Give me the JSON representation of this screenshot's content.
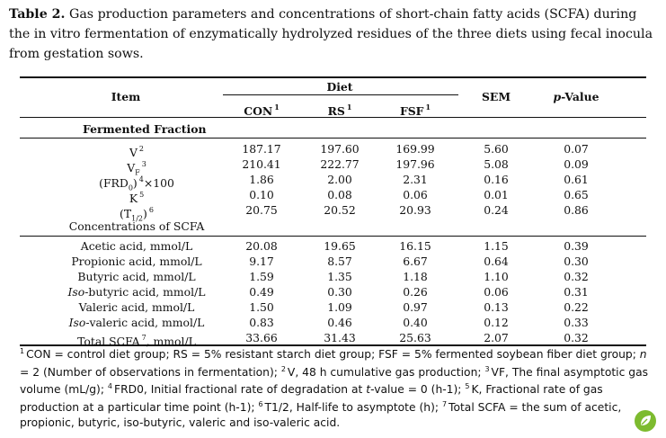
{
  "caption": {
    "label": "Table 2.",
    "text": "Gas production parameters and concentrations of short-chain fatty acids (SCFA) during the in vitro fermentation of enzymatically hydrolyzed residues of the three diets using fecal inocula from gestation sows."
  },
  "header": {
    "item": "Item",
    "diet": "Diet",
    "con": "CON",
    "con_sup": "1",
    "rs": "RS",
    "rs_sup": "1",
    "fsf": "FSF",
    "fsf_sup": "1",
    "sem": "SEM",
    "pvalue": "p-Value"
  },
  "section1": "Fermented Fraction",
  "section2": "Concentrations of SCFA",
  "gas_rows": [
    {
      "label": "V",
      "sup": "2",
      "con": "187.17",
      "rs": "197.60",
      "fsf": "169.99",
      "sem": "5.60",
      "p": "0.07"
    },
    {
      "label": "V",
      "sub": "F",
      "sup": "3",
      "con": "210.41",
      "rs": "222.77",
      "fsf": "197.96",
      "sem": "5.08",
      "p": "0.09"
    },
    {
      "label": "(FRD",
      "sub": "0",
      "after": ")",
      "sup": "4",
      "tail": "×100",
      "con": "1.86",
      "rs": "2.00",
      "fsf": "2.31",
      "sem": "0.16",
      "p": "0.61"
    },
    {
      "label": "K",
      "sup": "5",
      "con": "0.10",
      "rs": "0.08",
      "fsf": "0.06",
      "sem": "0.01",
      "p": "0.65"
    },
    {
      "label": "(T",
      "sub": "1/2",
      "after": ")",
      "sup": "6",
      "con": "20.75",
      "rs": "20.52",
      "fsf": "20.93",
      "sem": "0.24",
      "p": "0.86"
    }
  ],
  "scfa_rows": [
    {
      "label": "Acetic acid, mmol/L",
      "con": "20.08",
      "rs": "19.65",
      "fsf": "16.15",
      "sem": "1.15",
      "p": "0.39"
    },
    {
      "label": "Propionic acid, mmol/L",
      "con": "9.17",
      "rs": "8.57",
      "fsf": "6.67",
      "sem": "0.64",
      "p": "0.30"
    },
    {
      "label": "Butyric acid, mmol/L",
      "con": "1.59",
      "rs": "1.35",
      "fsf": "1.18",
      "sem": "1.10",
      "p": "0.32"
    },
    {
      "label_italic": "Iso",
      "label": "-butyric acid, mmol/L",
      "con": "0.49",
      "rs": "0.30",
      "fsf": "0.26",
      "sem": "0.06",
      "p": "0.31"
    },
    {
      "label": "Valeric acid, mmol/L",
      "con": "1.50",
      "rs": "1.09",
      "fsf": "0.97",
      "sem": "0.13",
      "p": "0.22"
    },
    {
      "label_italic": "Iso",
      "label": "-valeric acid, mmol/L",
      "con": "0.83",
      "rs": "0.46",
      "fsf": "0.40",
      "sem": "0.12",
      "p": "0.33"
    },
    {
      "label": "Total SCFA",
      "sup": "7",
      "tail": ", mmol/L",
      "con": "33.66",
      "rs": "31.43",
      "fsf": "25.63",
      "sem": "2.07",
      "p": "0.32"
    }
  ],
  "footnote": {
    "sup1": "1",
    "t1": "CON = control diet group; RS = 5% resistant starch diet group; FSF = 5% fermented soybean fiber diet group;",
    "n": "n",
    "t2": " = 2 (Number of observations in fermentation);",
    "sup2": "2",
    "t3": "V, 48 h cumulative gas production;",
    "sup3": "3",
    "t4": "VF, The final asymptotic gas volume (mL/g);",
    "sup4": "4",
    "t5": "FRD0, Initial fractional rate of degradation at",
    "tval": "t",
    "t6": "-value = 0 (h-1);",
    "sup5": "5",
    "t7": "K, Fractional rate of gas production at a particular time point (h-1);",
    "sup6": "6",
    "t8": "T1/2, Half-life to asymptote (h);",
    "sup7": "7",
    "t9": "Total SCFA = the sum of acetic, propionic, butyric, iso-butyric, valeric and iso-valeric acid."
  },
  "logo_icon": "leaf-logo-icon"
}
